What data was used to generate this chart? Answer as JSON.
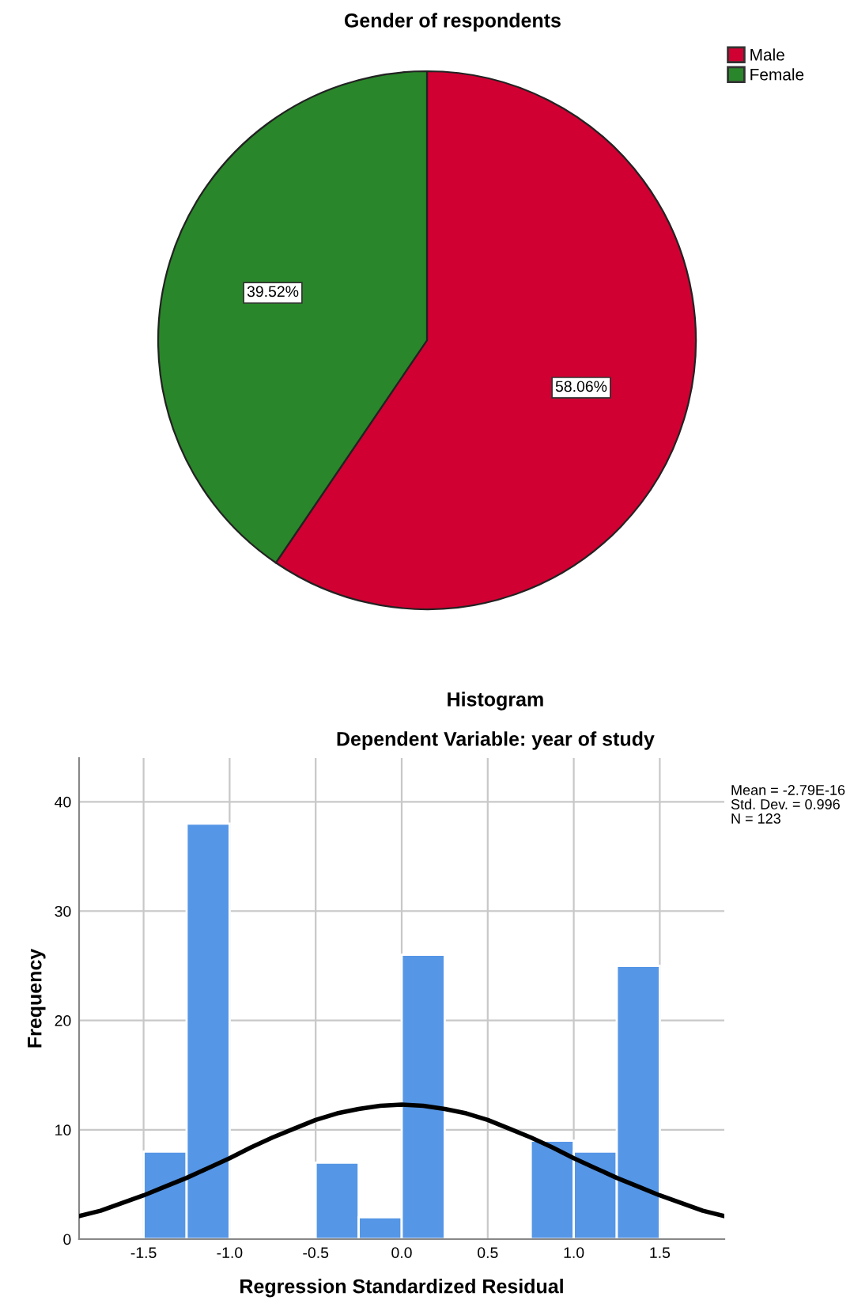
{
  "chart_data": [
    {
      "type": "pie",
      "title": "Gender of respondents",
      "categories": [
        "Male",
        "Female"
      ],
      "values": [
        58.06,
        39.52
      ],
      "colors": [
        "#d10032",
        "#2a862a"
      ],
      "value_labels": [
        "58.06%",
        "39.52%"
      ],
      "legend": "top right"
    },
    {
      "type": "histogram",
      "title": "Histogram",
      "subtitle": "Dependent Variable: year of study",
      "xlabel": "Regression Standardized Residual",
      "ylabel": "Frequency",
      "bins": [
        -1.5,
        -1.25,
        -1.0,
        -0.75,
        -0.5,
        -0.25,
        0.0,
        0.25,
        0.5,
        0.75,
        1.0,
        1.25,
        1.5
      ],
      "values": [
        8,
        38,
        0,
        0,
        7,
        2,
        26,
        0,
        0,
        9,
        8,
        25
      ],
      "color": "#5596e6",
      "series": [
        {
          "type": "line",
          "color": "#000000",
          "x": [
            -1.875,
            -1.75,
            -1.625,
            -1.5,
            -1.375,
            -1.25,
            -1.125,
            -1.0,
            -0.875,
            -0.75,
            -0.625,
            -0.5,
            -0.375,
            -0.25,
            -0.125,
            0.0,
            0.125,
            0.25,
            0.375,
            0.5,
            0.625,
            0.75,
            0.875,
            1.0,
            1.125,
            1.25,
            1.375,
            1.5,
            1.625,
            1.75,
            1.875
          ],
          "values": [
            2.1,
            2.6,
            3.3,
            4.0,
            4.8,
            5.6,
            6.5,
            7.4,
            8.4,
            9.3,
            10.1,
            10.9,
            11.5,
            11.9,
            12.2,
            12.3,
            12.2,
            11.9,
            11.5,
            10.9,
            10.1,
            9.3,
            8.4,
            7.4,
            6.5,
            5.6,
            4.8,
            4.0,
            3.3,
            2.6,
            2.1
          ]
        }
      ],
      "xlim": [
        -1.875,
        1.875
      ],
      "ylim": [
        0,
        44
      ],
      "xticks": [
        {
          "value": -1.5,
          "label": "-1.5"
        },
        {
          "value": -1.0,
          "label": "-1.0"
        },
        {
          "value": -0.5,
          "label": "-0.5"
        },
        {
          "value": 0.0,
          "label": "0.0"
        },
        {
          "value": 0.5,
          "label": "0.5"
        },
        {
          "value": 1.0,
          "label": "1.0"
        },
        {
          "value": 1.5,
          "label": "1.5"
        }
      ],
      "yticks": [
        0,
        10,
        20,
        30,
        40
      ],
      "grid": true,
      "annotations": [
        "Mean = -2.79E-16",
        "Std. Dev. = 0.996",
        "N = 123"
      ]
    }
  ]
}
